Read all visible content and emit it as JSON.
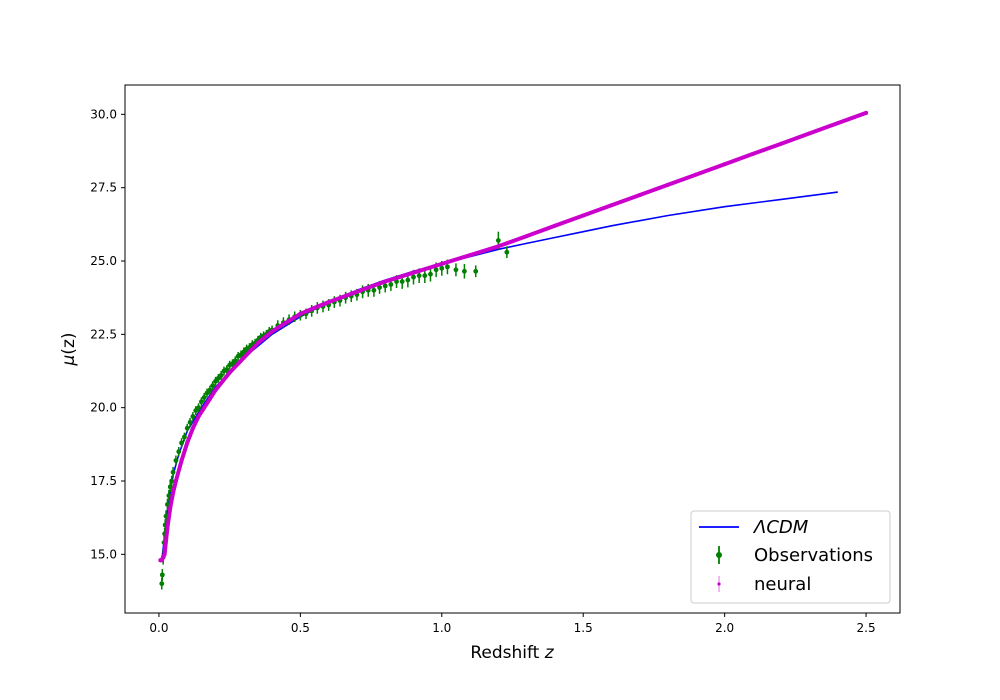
{
  "chart_data": {
    "type": "scatter",
    "xlabel": "Redshift z",
    "xlabel_main": "Redshift ",
    "xlabel_var": "z",
    "ylabel_var": "μ",
    "ylabel_arg": "(z)",
    "xlim": [
      -0.12,
      2.62
    ],
    "ylim": [
      13.0,
      31.0
    ],
    "xticks": [
      0.0,
      0.5,
      1.0,
      1.5,
      2.0,
      2.5
    ],
    "xtick_labels": [
      "0.0",
      "0.5",
      "1.0",
      "1.5",
      "2.0",
      "2.5"
    ],
    "yticks": [
      15.0,
      17.5,
      20.0,
      22.5,
      25.0,
      27.5,
      30.0
    ],
    "ytick_labels": [
      "15.0",
      "17.5",
      "20.0",
      "22.5",
      "25.0",
      "27.5",
      "30.0"
    ],
    "grid": false,
    "legend": {
      "placement": "lower-right",
      "entries": [
        {
          "label": "ΛCDM",
          "style": "line",
          "color": "#0000cc"
        },
        {
          "label": "Observations",
          "style": "errorbar",
          "color": "#007f00"
        },
        {
          "label": "neural",
          "style": "errorbar-small",
          "color": "#cc44cc"
        }
      ]
    },
    "series": [
      {
        "name": "ΛCDM",
        "kind": "line",
        "color": "#0000ff",
        "x": [
          0.01,
          0.02,
          0.03,
          0.05,
          0.07,
          0.1,
          0.15,
          0.2,
          0.3,
          0.4,
          0.5,
          0.6,
          0.7,
          0.8,
          0.9,
          1.0,
          1.1,
          1.2,
          1.3,
          1.4,
          1.5,
          1.6,
          1.8,
          2.0,
          2.2,
          2.4
        ],
        "y": [
          14.8,
          15.6,
          16.5,
          17.7,
          18.4,
          19.2,
          20.0,
          20.7,
          21.7,
          22.5,
          23.1,
          23.6,
          24.0,
          24.35,
          24.65,
          24.9,
          25.15,
          25.4,
          25.6,
          25.8,
          26.0,
          26.2,
          26.55,
          26.85,
          27.1,
          27.35
        ]
      },
      {
        "name": "Observations",
        "kind": "errorbar",
        "color": "#007f00",
        "x": [
          0.01,
          0.012,
          0.015,
          0.018,
          0.02,
          0.022,
          0.025,
          0.03,
          0.035,
          0.04,
          0.045,
          0.05,
          0.06,
          0.07,
          0.08,
          0.09,
          0.1,
          0.11,
          0.12,
          0.13,
          0.14,
          0.15,
          0.16,
          0.17,
          0.18,
          0.19,
          0.2,
          0.21,
          0.22,
          0.23,
          0.24,
          0.25,
          0.26,
          0.27,
          0.28,
          0.29,
          0.3,
          0.31,
          0.32,
          0.33,
          0.34,
          0.35,
          0.36,
          0.37,
          0.38,
          0.39,
          0.4,
          0.42,
          0.44,
          0.46,
          0.48,
          0.5,
          0.52,
          0.54,
          0.56,
          0.58,
          0.6,
          0.62,
          0.64,
          0.66,
          0.68,
          0.7,
          0.72,
          0.74,
          0.76,
          0.78,
          0.8,
          0.82,
          0.84,
          0.86,
          0.88,
          0.9,
          0.92,
          0.94,
          0.96,
          0.98,
          1.0,
          1.02,
          1.05,
          1.08,
          1.12,
          1.2,
          1.23
        ],
        "y": [
          14.0,
          14.3,
          14.9,
          15.4,
          15.7,
          16.0,
          16.3,
          16.7,
          17.0,
          17.3,
          17.5,
          17.8,
          18.2,
          18.5,
          18.8,
          19.0,
          19.3,
          19.5,
          19.7,
          19.9,
          20.0,
          20.2,
          20.35,
          20.5,
          20.6,
          20.75,
          20.9,
          21.0,
          21.1,
          21.25,
          21.3,
          21.45,
          21.5,
          21.6,
          21.75,
          21.8,
          21.9,
          22.0,
          22.05,
          22.15,
          22.2,
          22.3,
          22.4,
          22.45,
          22.5,
          22.6,
          22.65,
          22.8,
          22.9,
          23.0,
          23.1,
          23.15,
          23.2,
          23.3,
          23.4,
          23.45,
          23.5,
          23.6,
          23.65,
          23.75,
          23.8,
          23.85,
          23.95,
          24.0,
          24.0,
          24.1,
          24.15,
          24.2,
          24.3,
          24.3,
          24.35,
          24.45,
          24.5,
          24.5,
          24.55,
          24.7,
          24.75,
          24.8,
          24.7,
          24.65,
          24.65,
          25.7,
          25.3
        ],
        "err": [
          0.2,
          0.2,
          0.25,
          0.25,
          0.2,
          0.2,
          0.2,
          0.2,
          0.2,
          0.18,
          0.18,
          0.18,
          0.17,
          0.16,
          0.16,
          0.15,
          0.15,
          0.15,
          0.15,
          0.15,
          0.15,
          0.15,
          0.15,
          0.15,
          0.15,
          0.15,
          0.15,
          0.15,
          0.15,
          0.15,
          0.15,
          0.15,
          0.15,
          0.15,
          0.15,
          0.15,
          0.15,
          0.15,
          0.15,
          0.15,
          0.15,
          0.15,
          0.15,
          0.15,
          0.15,
          0.15,
          0.15,
          0.18,
          0.18,
          0.18,
          0.18,
          0.18,
          0.18,
          0.2,
          0.2,
          0.2,
          0.2,
          0.2,
          0.2,
          0.2,
          0.2,
          0.2,
          0.22,
          0.22,
          0.22,
          0.22,
          0.22,
          0.22,
          0.22,
          0.25,
          0.25,
          0.25,
          0.25,
          0.25,
          0.25,
          0.25,
          0.25,
          0.25,
          0.22,
          0.25,
          0.2,
          0.3,
          0.2
        ]
      },
      {
        "name": "neural",
        "kind": "errorbar-small",
        "color": "#cc00cc",
        "x": [
          0.005,
          0.01,
          0.02,
          0.03,
          0.04,
          0.05,
          0.06,
          0.08,
          0.1,
          0.12,
          0.14,
          0.16,
          0.18,
          0.2,
          0.25,
          0.3,
          0.35,
          0.4,
          0.45,
          0.5,
          0.55,
          0.6,
          0.7,
          0.8,
          0.9,
          1.0,
          1.1,
          1.2,
          1.3,
          1.4,
          1.5,
          1.6,
          1.7,
          1.8,
          1.9,
          2.0,
          2.1,
          2.2,
          2.3,
          2.4,
          2.5
        ],
        "y": [
          14.8,
          14.8,
          15.0,
          15.9,
          16.6,
          17.1,
          17.5,
          18.2,
          18.8,
          19.3,
          19.7,
          20.0,
          20.3,
          20.6,
          21.2,
          21.7,
          22.2,
          22.6,
          22.9,
          23.2,
          23.4,
          23.6,
          23.95,
          24.3,
          24.6,
          24.9,
          25.2,
          25.5,
          25.85,
          26.2,
          26.55,
          26.9,
          27.25,
          27.6,
          27.95,
          28.3,
          28.65,
          29.0,
          29.35,
          29.7,
          30.05
        ],
        "err": [
          0.05,
          0.05,
          0.05,
          0.05,
          0.05,
          0.05,
          0.05,
          0.05,
          0.05,
          0.05,
          0.05,
          0.05,
          0.05,
          0.05,
          0.05,
          0.05,
          0.05,
          0.05,
          0.05,
          0.05,
          0.05,
          0.05,
          0.05,
          0.05,
          0.05,
          0.05,
          0.05,
          0.05,
          0.05,
          0.05,
          0.05,
          0.05,
          0.05,
          0.05,
          0.05,
          0.05,
          0.05,
          0.05,
          0.05,
          0.05,
          0.05
        ]
      }
    ]
  }
}
